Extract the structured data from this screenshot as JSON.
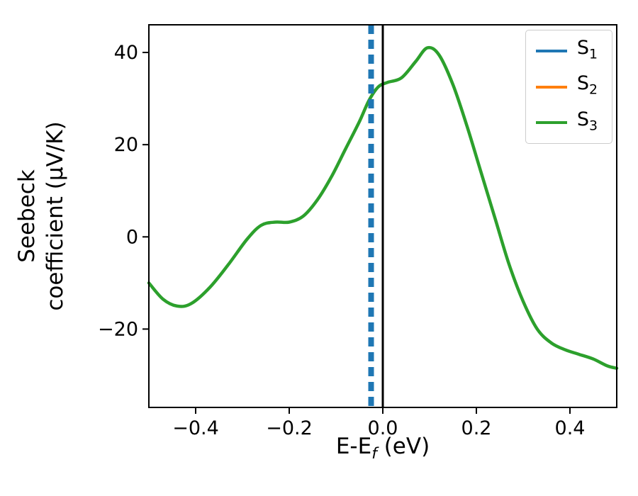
{
  "chart_data": {
    "type": "line",
    "title": "",
    "xlabel_parts": {
      "pre": "E-E",
      "sub": "f",
      "post": " (eV)"
    },
    "ylabel_lines": [
      "Seebeck",
      "coefficient  (μV/K)"
    ],
    "xlim": [
      -0.5,
      0.5
    ],
    "ylim": [
      -37,
      46
    ],
    "grid": false,
    "xticks": {
      "values": [
        -0.4,
        -0.2,
        0.0,
        0.2,
        0.4
      ],
      "labels": [
        "−0.4",
        "−0.2",
        "0.0",
        "0.2",
        "0.4"
      ]
    },
    "yticks": {
      "values": [
        -20,
        0,
        20,
        40
      ],
      "labels": [
        "−20",
        "0",
        "20",
        "40"
      ]
    },
    "legend": {
      "position": "upper right",
      "entries": [
        {
          "label": "S",
          "sub": "1",
          "color": "#1f77b4"
        },
        {
          "label": "S",
          "sub": "2",
          "color": "#ff7f0e"
        },
        {
          "label": "S",
          "sub": "3",
          "color": "#2ca02c"
        }
      ]
    },
    "series": [
      {
        "name": "S3",
        "color": "#2ca02c",
        "style": "solid",
        "width": 4.5,
        "x": [
          -0.5,
          -0.47,
          -0.44,
          -0.41,
          -0.37,
          -0.33,
          -0.29,
          -0.26,
          -0.23,
          -0.2,
          -0.17,
          -0.14,
          -0.11,
          -0.08,
          -0.05,
          -0.03,
          -0.01,
          0.01,
          0.04,
          0.07,
          0.095,
          0.12,
          0.15,
          0.18,
          0.21,
          0.24,
          0.27,
          0.3,
          0.33,
          0.36,
          0.39,
          0.42,
          0.45,
          0.48,
          0.5
        ],
        "y": [
          -10,
          -13.5,
          -15,
          -14.5,
          -11,
          -6,
          -0.5,
          2.5,
          3.2,
          3.2,
          4.5,
          8,
          13,
          19,
          25,
          29.5,
          32.5,
          33.5,
          34.5,
          38,
          41,
          39.5,
          33,
          24,
          14,
          4,
          -6,
          -14,
          -20,
          -23,
          -24.5,
          -25.5,
          -26.5,
          -28,
          -28.5
        ]
      }
    ],
    "vlines": [
      {
        "name": "S1",
        "x": -0.025,
        "color": "#1f77b4",
        "style": "dashed",
        "width": 8
      },
      {
        "name": "zero-energy",
        "x": 0.0,
        "color": "#000000",
        "style": "solid",
        "width": 3
      }
    ]
  }
}
